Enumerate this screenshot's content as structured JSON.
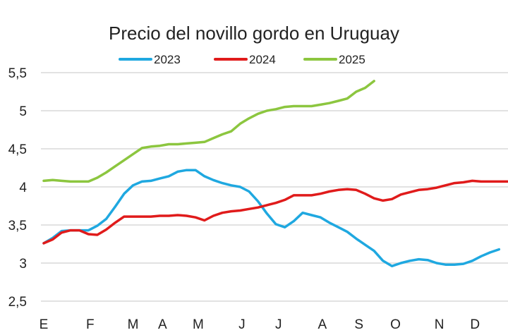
{
  "chart_data": {
    "type": "line",
    "title": "Precio del novillo gordo en Uruguay",
    "xlabel": "",
    "ylabel": "",
    "ylim": [
      2.5,
      5.5
    ],
    "yticks": [
      "5,5",
      "5",
      "4,5",
      "4",
      "3,5",
      "3",
      "2,5"
    ],
    "ytick_values": [
      5.5,
      5,
      4.5,
      4,
      3.5,
      3,
      2.5
    ],
    "x_unit": "week",
    "xlim": [
      0,
      52
    ],
    "xticks": [
      {
        "label": "E",
        "x": 0
      },
      {
        "label": "F",
        "x": 5.2
      },
      {
        "label": "M",
        "x": 10
      },
      {
        "label": "A",
        "x": 13.3
      },
      {
        "label": "M",
        "x": 17.3
      },
      {
        "label": "J",
        "x": 22.2
      },
      {
        "label": "J",
        "x": 26.3
      },
      {
        "label": "A",
        "x": 31.2
      },
      {
        "label": "S",
        "x": 35.3
      },
      {
        "label": "O",
        "x": 39.4
      },
      {
        "label": "N",
        "x": 44.3
      },
      {
        "label": "D",
        "x": 48.3
      }
    ],
    "grid": true,
    "legend_position": "top",
    "series": [
      {
        "name": "2023",
        "color": "#1fa8e0",
        "values": [
          3.26,
          3.33,
          3.42,
          3.43,
          3.43,
          3.43,
          3.49,
          3.58,
          3.74,
          3.91,
          4.02,
          4.07,
          4.08,
          4.11,
          4.14,
          4.2,
          4.22,
          4.22,
          4.14,
          4.09,
          4.05,
          4.02,
          4.0,
          3.94,
          3.81,
          3.65,
          3.51,
          3.47,
          3.55,
          3.66,
          3.63,
          3.6,
          3.53,
          3.47,
          3.41,
          3.32,
          3.24,
          3.16,
          3.03,
          2.96,
          3.0,
          3.03,
          3.05,
          3.04,
          3.0,
          2.98,
          2.98,
          2.99,
          3.03,
          3.09,
          3.14,
          3.18
        ]
      },
      {
        "name": "2024",
        "color": "#e01b1b",
        "values": [
          3.26,
          3.31,
          3.4,
          3.43,
          3.43,
          3.38,
          3.37,
          3.44,
          3.53,
          3.61,
          3.61,
          3.61,
          3.61,
          3.62,
          3.62,
          3.63,
          3.62,
          3.6,
          3.56,
          3.62,
          3.66,
          3.68,
          3.69,
          3.71,
          3.73,
          3.76,
          3.79,
          3.83,
          3.89,
          3.89,
          3.89,
          3.91,
          3.94,
          3.96,
          3.97,
          3.96,
          3.91,
          3.85,
          3.82,
          3.84,
          3.9,
          3.93,
          3.96,
          3.97,
          3.99,
          4.02,
          4.05,
          4.06,
          4.08,
          4.07,
          4.07,
          4.07,
          4.07
        ]
      },
      {
        "name": "2025",
        "color": "#8cc63f",
        "values": [
          4.08,
          4.09,
          4.08,
          4.07,
          4.07,
          4.07,
          4.12,
          4.19,
          4.27,
          4.35,
          4.43,
          4.51,
          4.53,
          4.54,
          4.56,
          4.56,
          4.57,
          4.58,
          4.59,
          4.64,
          4.69,
          4.73,
          4.83,
          4.9,
          4.96,
          5.0,
          5.02,
          5.05,
          5.06,
          5.06,
          5.06,
          5.08,
          5.1,
          5.13,
          5.16,
          5.25,
          5.3,
          5.39
        ]
      }
    ]
  }
}
